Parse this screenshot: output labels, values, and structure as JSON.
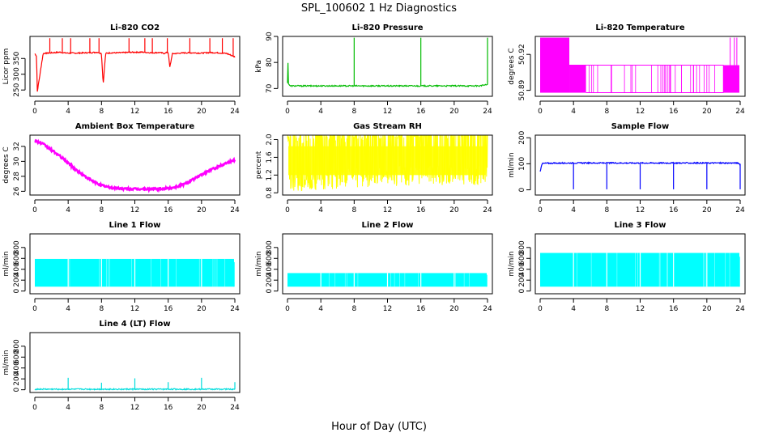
{
  "figure": {
    "title": "SPL_100602  1 Hz Diagnostics",
    "xlabel": "Hour of Day (UTC)"
  },
  "chart_data": [
    {
      "type": "line",
      "title": "Li-820 CO2",
      "ylabel": "Licor ppm",
      "color": "#ff0000",
      "xlim": [
        0,
        24
      ],
      "xticks": [
        0,
        4,
        8,
        12,
        16,
        20,
        24
      ],
      "ylim": [
        230,
        420
      ],
      "yticks": [
        250,
        300,
        350
      ],
      "series": [
        {
          "x": [
            0,
            0.2,
            0.3,
            1,
            2,
            3,
            3.5,
            4,
            5,
            6,
            7,
            7.5,
            8,
            8.2,
            8.5,
            9,
            10,
            11,
            12,
            13,
            14,
            15,
            15.5,
            16,
            16.2,
            16.5,
            17,
            18,
            19,
            20,
            21,
            22,
            23,
            23.5,
            24
          ],
          "values": [
            365,
            358,
            245,
            366,
            368,
            370,
            368,
            367,
            367,
            368,
            369,
            370,
            366,
            268,
            366,
            368,
            368,
            369,
            370,
            370,
            368,
            369,
            366,
            370,
            322,
            365,
            366,
            368,
            368,
            367,
            369,
            368,
            366,
            361,
            355
          ]
        }
      ],
      "spikes_up": [
        1.8,
        3.3,
        4.3,
        6.6,
        7.7,
        11.3,
        13.2,
        14.1,
        15.9,
        18.6,
        21,
        22.5,
        23.8
      ]
    },
    {
      "type": "line",
      "title": "Li-820 Pressure",
      "ylabel": "kPa",
      "color": "#00bb00",
      "xlim": [
        0,
        24
      ],
      "xticks": [
        0,
        4,
        8,
        12,
        16,
        20,
        24
      ],
      "ylim": [
        67,
        90
      ],
      "yticks": [
        70,
        80,
        90
      ],
      "series": [
        {
          "x": [
            0,
            0.05,
            0.1,
            0.3,
            1,
            2,
            4,
            6,
            8,
            10,
            12,
            14,
            16,
            18,
            20,
            22,
            23,
            24
          ],
          "values": [
            72,
            82,
            72,
            71,
            71,
            71,
            71,
            71,
            71,
            71,
            71,
            71,
            71,
            71,
            71,
            71,
            71,
            71.5
          ]
        }
      ],
      "spikes_up": [
        8,
        16,
        24
      ],
      "spike_top": 89.5
    },
    {
      "type": "line",
      "title": "Li-820 Temperature",
      "ylabel": "degrees C",
      "color": "#ff00ff",
      "xlim": [
        0,
        24
      ],
      "xticks": [
        0,
        4,
        8,
        12,
        16,
        20,
        24
      ],
      "ylim": [
        50.885,
        50.935
      ],
      "yticks": [
        50.89,
        50.92
      ],
      "ytick_labels": [
        "50.89",
        "50.92"
      ],
      "series": [
        {
          "x": [
            0,
            3.5,
            3.6,
            5.5,
            5.6,
            22.5,
            23.3,
            24
          ],
          "values": [
            50.934,
            50.934,
            50.911,
            50.911,
            50.888,
            50.888,
            50.911,
            50.911
          ]
        }
      ]
    },
    {
      "type": "line",
      "title": "Ambient Box Temperature",
      "ylabel": "degrees C",
      "color": "#ff00ff",
      "xlim": [
        0,
        24
      ],
      "xticks": [
        0,
        4,
        8,
        12,
        16,
        20,
        24
      ],
      "ylim": [
        25.5,
        33.5
      ],
      "yticks": [
        26,
        28,
        30,
        32
      ],
      "series": [
        {
          "x": [
            0,
            1,
            2,
            3,
            4,
            5,
            6,
            7,
            8,
            9,
            10,
            11,
            12,
            13,
            14,
            15,
            16,
            17,
            18,
            19,
            20,
            21,
            22,
            23,
            24
          ],
          "values": [
            32.8,
            32.3,
            31.5,
            30.7,
            29.8,
            28.8,
            28,
            27.3,
            26.8,
            26.5,
            26.4,
            26.3,
            26.3,
            26.3,
            26.3,
            26.3,
            26.4,
            26.6,
            27,
            27.6,
            28.2,
            28.8,
            29.3,
            29.8,
            30.2
          ]
        }
      ]
    },
    {
      "type": "line",
      "title": "Gas Stream RH",
      "ylabel": "percent",
      "color": "#ffff00",
      "xlim": [
        0,
        24
      ],
      "xticks": [
        0,
        4,
        8,
        12,
        16,
        20,
        24
      ],
      "ylim": [
        0.75,
        2.1
      ],
      "yticks": [
        0.8,
        1.2,
        1.6,
        2.0
      ],
      "ytick_labels": [
        "0.8",
        "1.2",
        "1.6",
        "2.0"
      ],
      "series": [
        {
          "x": [
            0,
            4,
            8,
            12,
            16,
            20,
            24
          ],
          "values": [
            1.55,
            1.6,
            1.65,
            1.7,
            1.72,
            1.72,
            1.72
          ]
        }
      ],
      "band_low": 0.95,
      "band_high": 1.95
    },
    {
      "type": "line",
      "title": "Sample Flow",
      "ylabel": "ml/min",
      "color": "#0000ff",
      "xlim": [
        0,
        24
      ],
      "xticks": [
        0,
        4,
        8,
        12,
        16,
        20,
        24
      ],
      "ylim": [
        -20,
        210
      ],
      "yticks": [
        0,
        100,
        200
      ],
      "series": [
        {
          "x": [
            0,
            0.2,
            0.5,
            4,
            8,
            12,
            16,
            20,
            23.8,
            24
          ],
          "values": [
            70,
            100,
            102,
            103,
            103,
            103,
            103,
            103,
            103,
            95
          ]
        }
      ],
      "spikes_down": [
        4,
        8,
        12,
        16,
        20,
        24
      ]
    },
    {
      "type": "area",
      "title": "Line 1 Flow",
      "ylabel": "ml/min",
      "color": "#00ffff",
      "xlim": [
        0,
        24
      ],
      "xticks": [
        0,
        4,
        8,
        12,
        16,
        20,
        24
      ],
      "ylim": [
        -50,
        1050
      ],
      "yticks": [
        0,
        200,
        400,
        600,
        800
      ],
      "band_low": 80,
      "band_high": 590,
      "gaps": [
        4,
        8,
        12,
        16,
        20
      ]
    },
    {
      "type": "area",
      "title": "Line 2 Flow",
      "ylabel": "ml/min",
      "color": "#00ffff",
      "xlim": [
        0,
        24
      ],
      "xticks": [
        0,
        4,
        8,
        12,
        16,
        20,
        24
      ],
      "ylim": [
        -50,
        1050
      ],
      "yticks": [
        0,
        200,
        400,
        600,
        800
      ],
      "band_low": 80,
      "band_high": 330,
      "gaps": [
        4,
        8,
        12,
        16,
        20
      ]
    },
    {
      "type": "area",
      "title": "Line 3 Flow",
      "ylabel": "ml/min",
      "color": "#00ffff",
      "xlim": [
        0,
        24
      ],
      "xticks": [
        0,
        4,
        8,
        12,
        16,
        20,
        24
      ],
      "ylim": [
        -50,
        1050
      ],
      "yticks": [
        0,
        200,
        400,
        600,
        800
      ],
      "band_low": 80,
      "band_high": 700,
      "gaps": [
        4,
        8,
        12,
        16,
        20
      ]
    },
    {
      "type": "line",
      "title": "Line 4 (LT) Flow",
      "ylabel": "ml/min",
      "color": "#00dddd",
      "xlim": [
        0,
        24
      ],
      "xticks": [
        0,
        4,
        8,
        12,
        16,
        20,
        24
      ],
      "ylim": [
        -50,
        1050
      ],
      "yticks": [
        0,
        200,
        400,
        600,
        800
      ],
      "series": [
        {
          "x": [
            0,
            24
          ],
          "values": [
            10,
            10
          ]
        }
      ],
      "spikes_up": [
        4,
        8,
        12,
        16,
        20,
        24
      ],
      "spike_heights": [
        220,
        130,
        210,
        140,
        220,
        140
      ]
    }
  ]
}
